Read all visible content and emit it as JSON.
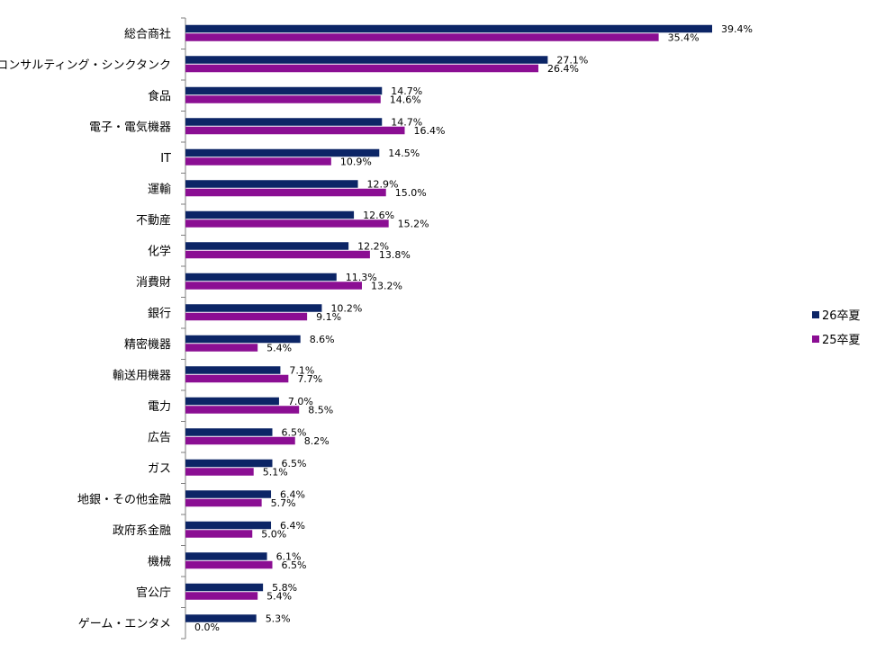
{
  "chart_data": {
    "type": "bar",
    "orientation": "horizontal",
    "categories": [
      "総合商社",
      "コンサルティング・シンクタンク",
      "食品",
      "電子・電気機器",
      "IT",
      "運輸",
      "不動産",
      "化学",
      "消費財",
      "銀行",
      "精密機器",
      "輸送用機器",
      "電力",
      "広告",
      "ガス",
      "地銀・その他金融",
      "政府系金融",
      "機械",
      "官公庁",
      "ゲーム・エンタメ"
    ],
    "series": [
      {
        "name": "26卒夏",
        "color": "#0c2566",
        "values": [
          39.4,
          27.1,
          14.7,
          14.7,
          14.5,
          12.9,
          12.6,
          12.2,
          11.3,
          10.2,
          8.6,
          7.1,
          7.0,
          6.5,
          6.5,
          6.4,
          6.4,
          6.1,
          5.8,
          5.3
        ]
      },
      {
        "name": "25卒夏",
        "color": "#8b0e93",
        "values": [
          35.4,
          26.4,
          14.6,
          16.4,
          10.9,
          15.0,
          15.2,
          13.8,
          13.2,
          9.1,
          5.4,
          7.7,
          8.5,
          8.2,
          5.1,
          5.7,
          5.0,
          6.5,
          5.4,
          0.0
        ]
      }
    ],
    "value_suffix": "%",
    "xlim": [
      0,
      45
    ],
    "grid": false,
    "legend_position": "right"
  }
}
